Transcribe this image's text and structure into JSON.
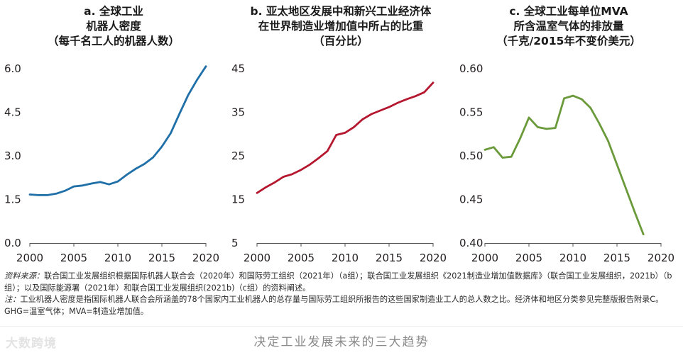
{
  "chart_data": [
    {
      "type": "line",
      "title": [
        "a. 全球工业",
        "机器人密度",
        "（每千名工人的机器人数）"
      ],
      "x": [
        2000,
        2001,
        2002,
        2003,
        2004,
        2005,
        2006,
        2007,
        2008,
        2009,
        2010,
        2011,
        2012,
        2013,
        2014,
        2015,
        2016,
        2017,
        2018,
        2019,
        2020
      ],
      "values": [
        1.67,
        1.65,
        1.65,
        1.7,
        1.8,
        1.95,
        1.98,
        2.05,
        2.1,
        2.02,
        2.12,
        2.35,
        2.55,
        2.72,
        2.95,
        3.32,
        3.78,
        4.45,
        5.1,
        5.62,
        6.08
      ],
      "xlim": [
        2000,
        2020
      ],
      "ylim": [
        0,
        6
      ],
      "yticks": [
        "0.0",
        "1.5",
        "3.0",
        "4.5",
        "6.0"
      ],
      "xticks": [
        "2000",
        "2005",
        "2010",
        "2015",
        "2020"
      ],
      "color": "#1f6fa8"
    },
    {
      "type": "line",
      "title": [
        "b. 亚太地区发展中和新兴工业经济体",
        "在世界制造业增加值中所占的比重",
        "（百分比）"
      ],
      "x": [
        2000,
        2001,
        2002,
        2003,
        2004,
        2005,
        2006,
        2007,
        2008,
        2009,
        2010,
        2011,
        2012,
        2013,
        2014,
        2015,
        2016,
        2017,
        2018,
        2019,
        2020
      ],
      "values": [
        16.5,
        17.8,
        18.9,
        20.2,
        20.8,
        21.8,
        23.0,
        24.5,
        26.1,
        29.8,
        30.3,
        31.6,
        33.4,
        34.6,
        35.4,
        36.2,
        37.2,
        38.0,
        38.7,
        39.6,
        41.8
      ],
      "xlim": [
        2000,
        2020
      ],
      "ylim": [
        5,
        45
      ],
      "yticks": [
        "5",
        "15",
        "25",
        "35",
        "45"
      ],
      "xticks": [
        "2000",
        "2005",
        "2010",
        "2015",
        "2020"
      ],
      "color": "#b5172f"
    },
    {
      "type": "line",
      "title": [
        "c. 全球工业每单位MVA",
        "所含温室气体的排放量",
        "（千克/2015年不变价美元）"
      ],
      "x": [
        2000,
        2001,
        2002,
        2003,
        2004,
        2005,
        2006,
        2007,
        2008,
        2009,
        2010,
        2011,
        2012,
        2013,
        2014,
        2015,
        2016,
        2017,
        2018
      ],
      "values": [
        0.507,
        0.51,
        0.498,
        0.499,
        0.52,
        0.544,
        0.533,
        0.531,
        0.532,
        0.566,
        0.569,
        0.565,
        0.555,
        0.537,
        0.517,
        0.49,
        0.463,
        0.436,
        0.41
      ],
      "xlim": [
        2000,
        2020
      ],
      "ylim": [
        0.4,
        0.6
      ],
      "yticks": [
        "0.40",
        "0.45",
        "0.50",
        "0.55",
        "0.60"
      ],
      "xticks": [
        "2000",
        "2005",
        "2010",
        "2015",
        "2020"
      ],
      "color": "#6a9a3a"
    }
  ],
  "notes": {
    "source_label": "资料来源：",
    "source_text": "联合国工业发展组织根据国际机器人联合会（2020年）和国际劳工组织（2021年）（a组）；联合国工业发展组织《2021制造业增加值数据库》（联合国工业发展组织，2021b）（b组）；以及国际能源署（2021年）和联合国工业发展组织(2021b)（c组）的资料阐述。",
    "note_label": "注：",
    "note_text": "工业机器人密度是指国际机器人联合会所涵盖的78个国家内工业机器人的总存量与国际劳工组织所报告的这些国家制造业工人的总人数之比。经济体和地区分类参见完整版报告附录C。GHG=温室气体；MVA=制造业增加值。"
  },
  "footer": {
    "caption": "决定工业发展未来的三大趋势",
    "watermark": "大数跨境"
  }
}
